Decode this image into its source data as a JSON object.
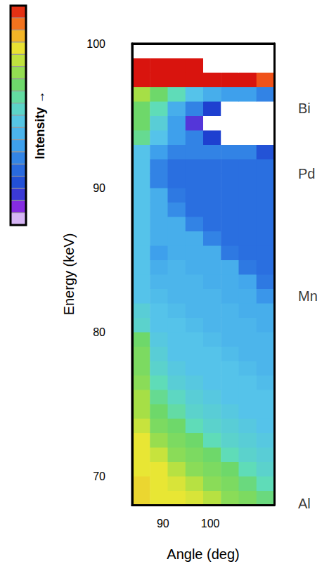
{
  "chart_data": {
    "type": "heatmap",
    "x_label": "Angle (deg)",
    "y_label": "Energy (keV)",
    "xlim": [
      83.5,
      113.5
    ],
    "xticks": [
      90,
      100
    ],
    "ylim": [
      68,
      100
    ],
    "yticks": [
      70,
      80,
      90,
      100
    ],
    "grid": false,
    "x_edges": [
      83.5,
      87.25,
      91,
      94.75,
      98.5,
      102.25,
      106,
      109.75,
      113.5
    ],
    "y_edges": [
      68,
      69,
      70,
      71,
      72,
      73,
      74,
      75,
      76,
      77,
      78,
      79,
      80,
      81,
      82,
      83,
      84,
      85,
      86,
      87,
      88,
      89,
      90,
      91,
      92,
      93,
      94,
      95,
      96,
      97,
      98,
      99,
      100
    ],
    "intensity": [
      [
        0.82,
        0.8,
        0.8,
        0.78,
        0.74,
        0.68,
        0.66,
        0.62
      ],
      [
        0.82,
        0.8,
        0.78,
        0.74,
        0.68,
        0.66,
        0.62,
        0.56
      ],
      [
        0.8,
        0.8,
        0.74,
        0.68,
        0.66,
        0.64,
        0.56,
        0.52
      ],
      [
        0.8,
        0.76,
        0.68,
        0.66,
        0.64,
        0.56,
        0.52,
        0.5
      ],
      [
        0.8,
        0.7,
        0.66,
        0.64,
        0.56,
        0.52,
        0.5,
        0.48
      ],
      [
        0.76,
        0.66,
        0.64,
        0.56,
        0.52,
        0.5,
        0.48,
        0.46
      ],
      [
        0.72,
        0.64,
        0.58,
        0.52,
        0.5,
        0.48,
        0.46,
        0.46
      ],
      [
        0.72,
        0.6,
        0.54,
        0.5,
        0.48,
        0.46,
        0.46,
        0.46
      ],
      [
        0.68,
        0.56,
        0.5,
        0.48,
        0.46,
        0.46,
        0.46,
        0.44
      ],
      [
        0.66,
        0.52,
        0.48,
        0.46,
        0.46,
        0.46,
        0.44,
        0.42
      ],
      [
        0.66,
        0.5,
        0.46,
        0.46,
        0.46,
        0.44,
        0.42,
        0.42
      ],
      [
        0.64,
        0.48,
        0.46,
        0.46,
        0.44,
        0.42,
        0.42,
        0.42
      ],
      [
        0.52,
        0.46,
        0.46,
        0.44,
        0.42,
        0.42,
        0.42,
        0.4
      ],
      [
        0.5,
        0.46,
        0.44,
        0.42,
        0.42,
        0.42,
        0.4,
        0.4
      ],
      [
        0.46,
        0.44,
        0.42,
        0.42,
        0.42,
        0.4,
        0.4,
        0.34
      ],
      [
        0.46,
        0.42,
        0.42,
        0.42,
        0.4,
        0.4,
        0.38,
        0.28
      ],
      [
        0.46,
        0.4,
        0.42,
        0.4,
        0.4,
        0.4,
        0.28,
        0.26
      ],
      [
        0.46,
        0.36,
        0.4,
        0.4,
        0.4,
        0.28,
        0.26,
        0.26
      ],
      [
        0.46,
        0.4,
        0.4,
        0.4,
        0.3,
        0.26,
        0.26,
        0.26
      ],
      [
        0.46,
        0.4,
        0.4,
        0.3,
        0.26,
        0.26,
        0.26,
        0.26
      ],
      [
        0.46,
        0.4,
        0.32,
        0.26,
        0.26,
        0.26,
        0.26,
        0.26
      ],
      [
        0.46,
        0.4,
        0.28,
        0.26,
        0.26,
        0.26,
        0.26,
        0.26
      ],
      [
        0.46,
        0.3,
        0.26,
        0.26,
        0.26,
        0.26,
        0.26,
        0.26
      ],
      [
        0.46,
        0.3,
        0.26,
        0.26,
        0.26,
        0.26,
        0.26,
        0.26
      ],
      [
        0.46,
        0.36,
        0.3,
        0.3,
        0.3,
        0.3,
        0.3,
        0.2
      ],
      [
        0.6,
        0.46,
        0.36,
        0.3,
        0.16,
        0,
        0,
        0
      ],
      [
        0.64,
        0.5,
        0.36,
        0.12,
        0,
        0,
        0,
        0
      ],
      [
        0.64,
        0.56,
        0.4,
        0.3,
        0.16,
        0,
        0,
        0
      ],
      [
        0.72,
        0.64,
        0.56,
        0.46,
        0.4,
        0.36,
        0.36,
        0.3
      ],
      [
        1,
        1,
        1,
        1,
        1,
        1,
        1,
        0.94
      ],
      [
        1,
        1,
        1,
        1,
        0,
        0,
        0,
        0
      ],
      [
        0,
        0,
        0,
        0,
        0,
        0,
        0,
        0
      ]
    ],
    "colorbar": {
      "label": "Intensity →",
      "range": [
        0,
        1
      ]
    },
    "annotations": [
      {
        "text": "Bi",
        "y": 95.5
      },
      {
        "text": "Pd",
        "y": 91.0
      },
      {
        "text": "Mn",
        "y": 82.5
      },
      {
        "text": "Al",
        "y": 68.1
      }
    ]
  }
}
